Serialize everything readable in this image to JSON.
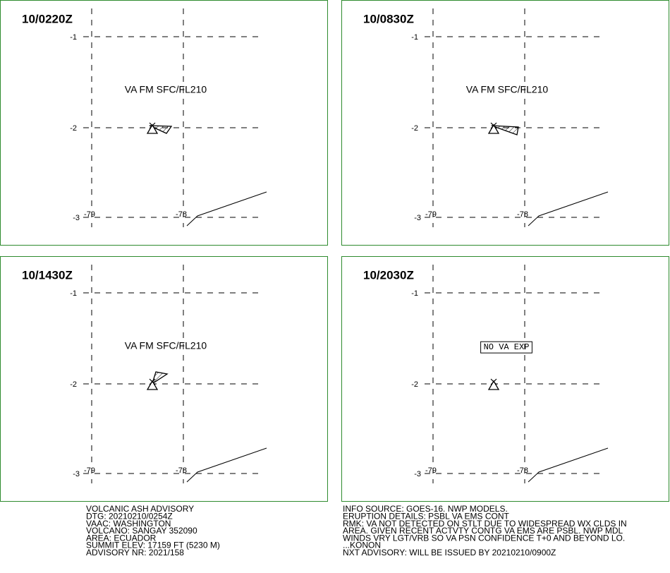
{
  "grid": {
    "lat": [
      -1,
      -2,
      -3
    ],
    "lon": [
      -79,
      -78
    ]
  },
  "panels": [
    {
      "time": "10/0220Z",
      "annotation": "VA FM SFC/FL210",
      "boxed": false
    },
    {
      "time": "10/0830Z",
      "annotation": "VA FM SFC/FL210",
      "boxed": false
    },
    {
      "time": "10/1430Z",
      "annotation": "VA FM SFC/FL210",
      "boxed": false
    },
    {
      "time": "10/2030Z",
      "annotation": "NO VA EXP",
      "boxed": true
    }
  ],
  "advisory_left": [
    "VOLCANIC ASH ADVISORY",
    "DTG: 20210210/0254Z",
    "VAAC: WASHINGTON",
    "VOLCANO: SANGAY 352090",
    "AREA: ECUADOR",
    "SUMMIT ELEV: 17159 FT (5230 M)",
    "ADVISORY NR: 2021/158"
  ],
  "advisory_right": [
    "INFO SOURCE: GOES-16. NWP MODELS.",
    "ERUPTION DETAILS: PSBL VA EMS CONT",
    "RMK: VA NOT DETECTED ON STLT DUE TO WIDESPREAD WX CLDS IN",
    "AREA. GIVEN RECENT ACTVTY CONTG VA EMS ARE PSBL. NWP MDL",
    "WINDS VRY LGT/VRB SO VA PSN CONFIDENCE T+0 AND BEYOND LO.",
    "...KONON",
    "NXT ADVISORY: WILL BE ISSUED BY 20210210/0900Z"
  ]
}
